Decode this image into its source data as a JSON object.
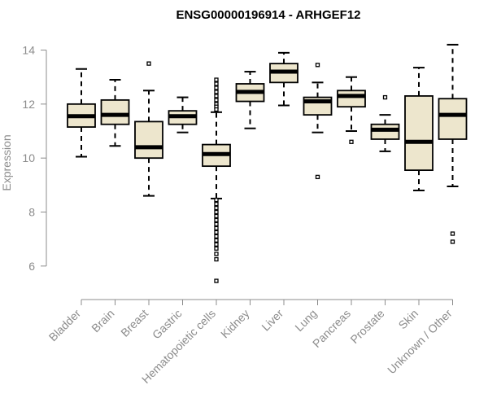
{
  "chart_data": {
    "type": "boxplot",
    "title": "ENSG00000196914 - ARHGEF12",
    "xlabel": "",
    "ylabel": "Expression",
    "ylim": [
      5.0,
      14.8
    ],
    "yticks": [
      6,
      8,
      10,
      12,
      14
    ],
    "colors": {
      "box_fill": "#ede6cd",
      "stroke": "#000000",
      "axis": "#8c8c8c"
    },
    "categories": [
      "Bladder",
      "Brain",
      "Breast",
      "Gastric",
      "Hematopoietic cells",
      "Kidney",
      "Liver",
      "Lung",
      "Pancreas",
      "Prostate",
      "Skin",
      "Unknown / Other"
    ],
    "boxes": [
      {
        "category": "Bladder",
        "whisker_low": 10.05,
        "q1": 11.15,
        "median": 11.55,
        "q3": 12.0,
        "whisker_high": 13.3,
        "outliers": []
      },
      {
        "category": "Brain",
        "whisker_low": 10.45,
        "q1": 11.25,
        "median": 11.6,
        "q3": 12.15,
        "whisker_high": 12.9,
        "outliers": []
      },
      {
        "category": "Breast",
        "whisker_low": 8.6,
        "q1": 10.0,
        "median": 10.4,
        "q3": 11.35,
        "whisker_high": 12.5,
        "outliers": [
          13.5
        ]
      },
      {
        "category": "Gastric",
        "whisker_low": 10.95,
        "q1": 11.25,
        "median": 11.55,
        "q3": 11.75,
        "whisker_high": 12.25,
        "outliers": []
      },
      {
        "category": "Hematopoietic cells",
        "whisker_low": 8.5,
        "q1": 9.7,
        "median": 10.15,
        "q3": 10.5,
        "whisker_high": 11.7,
        "outliers": [
          12.9,
          12.75,
          12.6,
          12.45,
          12.3,
          12.15,
          12.0,
          11.9,
          11.8,
          8.45,
          8.3,
          8.15,
          8.0,
          7.85,
          7.7,
          7.55,
          7.4,
          7.25,
          7.1,
          6.95,
          6.8,
          6.65,
          6.45,
          6.25,
          5.45
        ]
      },
      {
        "category": "Kidney",
        "whisker_low": 11.1,
        "q1": 12.1,
        "median": 12.45,
        "q3": 12.75,
        "whisker_high": 13.2,
        "outliers": []
      },
      {
        "category": "Liver",
        "whisker_low": 11.95,
        "q1": 12.8,
        "median": 13.2,
        "q3": 13.5,
        "whisker_high": 13.9,
        "outliers": []
      },
      {
        "category": "Lung",
        "whisker_low": 10.95,
        "q1": 11.6,
        "median": 12.1,
        "q3": 12.25,
        "whisker_high": 12.8,
        "outliers": [
          13.45,
          9.3
        ]
      },
      {
        "category": "Pancreas",
        "whisker_low": 11.0,
        "q1": 11.9,
        "median": 12.3,
        "q3": 12.5,
        "whisker_high": 13.0,
        "outliers": [
          10.6
        ]
      },
      {
        "category": "Prostate",
        "whisker_low": 10.25,
        "q1": 10.7,
        "median": 11.05,
        "q3": 11.25,
        "whisker_high": 11.6,
        "outliers": [
          12.25
        ]
      },
      {
        "category": "Skin",
        "whisker_low": 8.8,
        "q1": 9.55,
        "median": 10.6,
        "q3": 12.3,
        "whisker_high": 13.35,
        "outliers": []
      },
      {
        "category": "Unknown / Other",
        "whisker_low": 8.95,
        "q1": 10.7,
        "median": 11.6,
        "q3": 12.2,
        "whisker_high": 14.2,
        "outliers": [
          7.2,
          6.9
        ]
      }
    ]
  }
}
